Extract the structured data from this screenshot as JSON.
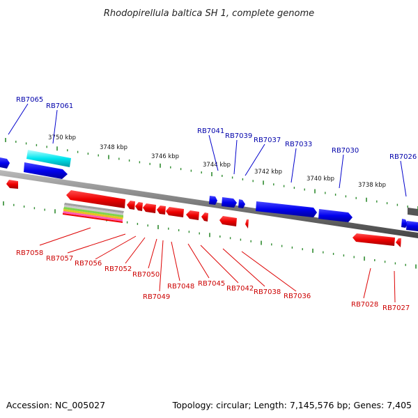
{
  "title": "Rhodopirellula baltica SH 1, complete genome",
  "footer": {
    "accession": "Accession: NC_005027",
    "summary": "Topology: circular; Length: 7,145,576 bp; Genes: 7,405"
  },
  "colors": {
    "forward": "#0000ee",
    "reverse": "#ee0000",
    "forward_label": "#0000aa",
    "reverse_label": "#cc0000",
    "ticks": "#2e8b2e",
    "backbone": "#7a7a7a",
    "highlight": "#00e5ee"
  },
  "ruler": [
    {
      "label": "3750 kbp"
    },
    {
      "label": "3748 kbp"
    },
    {
      "label": "3746 kbp"
    },
    {
      "label": "3744 kbp"
    },
    {
      "label": "3742 kbp"
    },
    {
      "label": "3740 kbp"
    },
    {
      "label": "3738 kbp"
    }
  ],
  "forward_genes": [
    {
      "label": "RB7065"
    },
    {
      "label": "RB7061"
    },
    {
      "label": "RB7041"
    },
    {
      "label": "RB7039"
    },
    {
      "label": "RB7037"
    },
    {
      "label": "RB7033"
    },
    {
      "label": "RB7030"
    },
    {
      "label": "RB7026"
    }
  ],
  "reverse_genes": [
    {
      "label": "RB7058"
    },
    {
      "label": "RB7057"
    },
    {
      "label": "RB7056"
    },
    {
      "label": "RB7052"
    },
    {
      "label": "RB7050"
    },
    {
      "label": "RB7049"
    },
    {
      "label": "RB7048"
    },
    {
      "label": "RB7045"
    },
    {
      "label": "RB7042"
    },
    {
      "label": "RB7038"
    },
    {
      "label": "RB7036"
    },
    {
      "label": "RB7028"
    },
    {
      "label": "RB7027"
    }
  ]
}
